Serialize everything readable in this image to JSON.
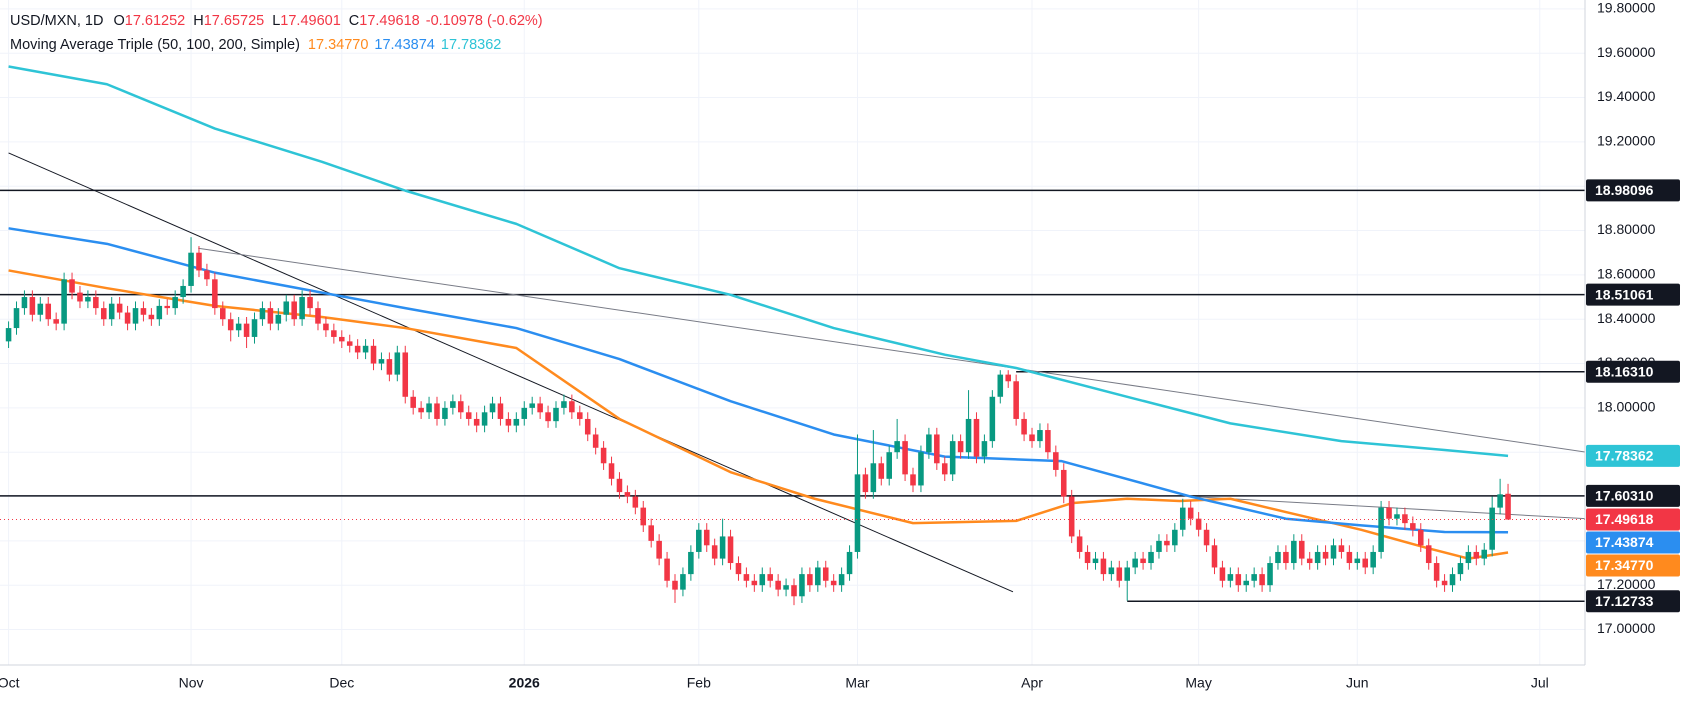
{
  "chart_data": {
    "type": "candlestick",
    "header": {
      "symbol": "USD/MXN, 1D",
      "ohlc": [
        {
          "key": "O",
          "value": "17.61252"
        },
        {
          "key": "H",
          "value": "17.65725"
        },
        {
          "key": "L",
          "value": "17.49601"
        },
        {
          "key": "C",
          "value": "17.49618"
        }
      ],
      "change": "-0.10978 (-0.62%)"
    },
    "legend_title": "Moving Average Triple (50, 100, 200, Simple)",
    "up_color": "#089981",
    "down_color": "#f23645",
    "grid": true,
    "xlim": [
      -1.08,
      198.7
    ],
    "ylim": [
      16.84,
      19.84
    ],
    "xticks": [
      {
        "value": 0,
        "label": "Oct"
      },
      {
        "value": 23,
        "label": "Nov"
      },
      {
        "value": 42,
        "label": "Dec"
      },
      {
        "value": 65,
        "label": "2026"
      },
      {
        "value": 87,
        "label": "Feb"
      },
      {
        "value": 107,
        "label": "Mar"
      },
      {
        "value": 129,
        "label": "Apr"
      },
      {
        "value": 150,
        "label": "May"
      },
      {
        "value": 170,
        "label": "Jun"
      },
      {
        "value": 193,
        "label": "Jul"
      }
    ],
    "yticks": [
      {
        "value": 17.0,
        "label": "17.00000"
      },
      {
        "value": 17.2,
        "label": "17.20000"
      },
      {
        "value": 17.4,
        "label": "17.40000"
      },
      {
        "value": 17.6,
        "label": "17.60000"
      },
      {
        "value": 17.8,
        "label": "17.80000"
      },
      {
        "value": 18.0,
        "label": "18.00000"
      },
      {
        "value": 18.2,
        "label": "18.20000"
      },
      {
        "value": 18.4,
        "label": "18.40000"
      },
      {
        "value": 18.6,
        "label": "18.60000"
      },
      {
        "value": 18.8,
        "label": "18.80000"
      },
      {
        "value": 19.0,
        "label": "19.00000"
      },
      {
        "value": 19.2,
        "label": "19.20000"
      },
      {
        "value": 19.4,
        "label": "19.40000"
      },
      {
        "value": 19.6,
        "label": "19.60000"
      },
      {
        "value": 19.8,
        "label": "19.80000"
      }
    ],
    "candles": [
      [
        18.3,
        18.39,
        18.27,
        18.36
      ],
      [
        18.36,
        18.48,
        18.33,
        18.45
      ],
      [
        18.45,
        18.53,
        18.42,
        18.5
      ],
      [
        18.5,
        18.53,
        18.39,
        18.42
      ],
      [
        18.42,
        18.5,
        18.39,
        18.47
      ],
      [
        18.47,
        18.5,
        18.37,
        18.4
      ],
      [
        18.4,
        18.43,
        18.35,
        18.38
      ],
      [
        18.38,
        18.61,
        18.35,
        18.58
      ],
      [
        18.58,
        18.61,
        18.49,
        18.52
      ],
      [
        18.52,
        18.55,
        18.45,
        18.48
      ],
      [
        18.48,
        18.53,
        18.45,
        18.5
      ],
      [
        18.5,
        18.53,
        18.42,
        18.45
      ],
      [
        18.45,
        18.48,
        18.37,
        18.4
      ],
      [
        18.4,
        18.5,
        18.37,
        18.47
      ],
      [
        18.47,
        18.5,
        18.4,
        18.43
      ],
      [
        18.43,
        18.46,
        18.35,
        18.38
      ],
      [
        18.38,
        18.48,
        18.35,
        18.45
      ],
      [
        18.45,
        18.48,
        18.39,
        18.42
      ],
      [
        18.42,
        18.45,
        18.37,
        18.4
      ],
      [
        18.4,
        18.49,
        18.37,
        18.46
      ],
      [
        18.46,
        18.49,
        18.42,
        18.45
      ],
      [
        18.45,
        18.53,
        18.42,
        18.5
      ],
      [
        18.5,
        18.58,
        18.47,
        18.55
      ],
      [
        18.55,
        18.77,
        18.52,
        18.7
      ],
      [
        18.7,
        18.73,
        18.59,
        18.62
      ],
      [
        18.62,
        18.65,
        18.55,
        18.58
      ],
      [
        18.58,
        18.61,
        18.42,
        18.45
      ],
      [
        18.45,
        18.48,
        18.37,
        18.4
      ],
      [
        18.4,
        18.43,
        18.3,
        18.35
      ],
      [
        18.35,
        18.41,
        18.32,
        18.38
      ],
      [
        18.38,
        18.41,
        18.27,
        18.32
      ],
      [
        18.32,
        18.43,
        18.29,
        18.4
      ],
      [
        18.4,
        18.48,
        18.37,
        18.45
      ],
      [
        18.45,
        18.48,
        18.35,
        18.38
      ],
      [
        18.38,
        18.45,
        18.35,
        18.42
      ],
      [
        18.42,
        18.51,
        18.39,
        18.48
      ],
      [
        18.48,
        18.51,
        18.37,
        18.4
      ],
      [
        18.4,
        18.53,
        18.37,
        18.5
      ],
      [
        18.5,
        18.53,
        18.42,
        18.45
      ],
      [
        18.45,
        18.48,
        18.35,
        18.38
      ],
      [
        18.38,
        18.41,
        18.32,
        18.35
      ],
      [
        18.35,
        18.38,
        18.29,
        18.32
      ],
      [
        18.32,
        18.35,
        18.27,
        18.3
      ],
      [
        18.3,
        18.33,
        18.25,
        18.28
      ],
      [
        18.28,
        18.31,
        18.22,
        18.25
      ],
      [
        18.25,
        18.31,
        18.22,
        18.28
      ],
      [
        18.28,
        18.31,
        18.17,
        18.2
      ],
      [
        18.2,
        18.25,
        18.17,
        18.22
      ],
      [
        18.22,
        18.25,
        18.12,
        18.15
      ],
      [
        18.15,
        18.28,
        18.12,
        18.25
      ],
      [
        18.25,
        18.28,
        18.02,
        18.05
      ],
      [
        18.05,
        18.08,
        17.97,
        18.0
      ],
      [
        18.0,
        18.03,
        17.95,
        17.98
      ],
      [
        17.98,
        18.05,
        17.95,
        18.02
      ],
      [
        18.02,
        18.05,
        17.92,
        17.95
      ],
      [
        17.95,
        18.03,
        17.92,
        18.0
      ],
      [
        18.0,
        18.06,
        17.97,
        18.03
      ],
      [
        18.03,
        18.06,
        17.95,
        17.98
      ],
      [
        17.98,
        18.01,
        17.92,
        17.95
      ],
      [
        17.95,
        17.98,
        17.89,
        17.92
      ],
      [
        17.92,
        18.01,
        17.89,
        17.98
      ],
      [
        17.98,
        18.05,
        17.95,
        18.02
      ],
      [
        18.02,
        18.05,
        17.92,
        17.95
      ],
      [
        17.95,
        17.98,
        17.89,
        17.92
      ],
      [
        17.92,
        17.98,
        17.89,
        17.95
      ],
      [
        17.95,
        18.03,
        17.92,
        18.0
      ],
      [
        18.0,
        18.05,
        17.97,
        18.02
      ],
      [
        18.02,
        18.05,
        17.95,
        17.98
      ],
      [
        17.98,
        18.01,
        17.91,
        17.94
      ],
      [
        17.94,
        18.03,
        17.91,
        18.0
      ],
      [
        18.0,
        18.06,
        17.97,
        18.03
      ],
      [
        18.03,
        18.06,
        17.95,
        17.98
      ],
      [
        17.98,
        18.01,
        17.92,
        17.95
      ],
      [
        17.95,
        17.98,
        17.85,
        17.88
      ],
      [
        17.88,
        17.91,
        17.79,
        17.82
      ],
      [
        17.82,
        17.85,
        17.72,
        17.75
      ],
      [
        17.75,
        17.78,
        17.65,
        17.68
      ],
      [
        17.68,
        17.71,
        17.59,
        17.62
      ],
      [
        17.62,
        17.65,
        17.57,
        17.6
      ],
      [
        17.6,
        17.63,
        17.52,
        17.55
      ],
      [
        17.55,
        17.58,
        17.44,
        17.47
      ],
      [
        17.47,
        17.5,
        17.37,
        17.4
      ],
      [
        17.4,
        17.43,
        17.29,
        17.32
      ],
      [
        17.32,
        17.35,
        17.19,
        17.22
      ],
      [
        17.22,
        17.25,
        17.12,
        17.18
      ],
      [
        17.18,
        17.28,
        17.15,
        17.25
      ],
      [
        17.25,
        17.38,
        17.22,
        17.35
      ],
      [
        17.35,
        17.48,
        17.32,
        17.45
      ],
      [
        17.45,
        17.48,
        17.35,
        17.38
      ],
      [
        17.38,
        17.41,
        17.29,
        17.32
      ],
      [
        17.32,
        17.5,
        17.29,
        17.42
      ],
      [
        17.42,
        17.45,
        17.27,
        17.3
      ],
      [
        17.3,
        17.33,
        17.22,
        17.25
      ],
      [
        17.25,
        17.28,
        17.19,
        17.22
      ],
      [
        17.22,
        17.25,
        17.17,
        17.2
      ],
      [
        17.2,
        17.28,
        17.17,
        17.25
      ],
      [
        17.25,
        17.28,
        17.19,
        17.22
      ],
      [
        17.22,
        17.25,
        17.15,
        17.18
      ],
      [
        17.18,
        17.23,
        17.15,
        17.2
      ],
      [
        17.2,
        17.23,
        17.11,
        17.15
      ],
      [
        17.15,
        17.28,
        17.12,
        17.25
      ],
      [
        17.25,
        17.28,
        17.17,
        17.2
      ],
      [
        17.2,
        17.31,
        17.17,
        17.28
      ],
      [
        17.28,
        17.31,
        17.19,
        17.22
      ],
      [
        17.22,
        17.25,
        17.17,
        17.2
      ],
      [
        17.2,
        17.28,
        17.17,
        17.25
      ],
      [
        17.25,
        17.38,
        17.22,
        17.35
      ],
      [
        17.35,
        17.88,
        17.32,
        17.7
      ],
      [
        17.7,
        17.73,
        17.59,
        17.62
      ],
      [
        17.62,
        17.9,
        17.59,
        17.75
      ],
      [
        17.75,
        17.78,
        17.65,
        17.68
      ],
      [
        17.68,
        17.83,
        17.65,
        17.8
      ],
      [
        17.8,
        17.95,
        17.77,
        17.85
      ],
      [
        17.85,
        17.88,
        17.67,
        17.7
      ],
      [
        17.7,
        17.73,
        17.62,
        17.65
      ],
      [
        17.65,
        17.83,
        17.62,
        17.8
      ],
      [
        17.8,
        17.91,
        17.77,
        17.88
      ],
      [
        17.88,
        17.91,
        17.72,
        17.75
      ],
      [
        17.75,
        17.78,
        17.67,
        17.7
      ],
      [
        17.7,
        17.88,
        17.67,
        17.85
      ],
      [
        17.85,
        17.88,
        17.77,
        17.8
      ],
      [
        17.8,
        18.08,
        17.77,
        17.95
      ],
      [
        17.95,
        17.98,
        17.75,
        17.78
      ],
      [
        17.78,
        17.88,
        17.75,
        17.85
      ],
      [
        17.85,
        18.08,
        17.82,
        18.05
      ],
      [
        18.05,
        18.17,
        18.02,
        18.15
      ],
      [
        18.15,
        18.17,
        18.09,
        18.12
      ],
      [
        18.12,
        18.15,
        17.92,
        17.95
      ],
      [
        17.95,
        17.98,
        17.85,
        17.88
      ],
      [
        17.88,
        17.91,
        17.82,
        17.85
      ],
      [
        17.85,
        17.93,
        17.82,
        17.9
      ],
      [
        17.9,
        17.93,
        17.77,
        17.8
      ],
      [
        17.8,
        17.83,
        17.69,
        17.72
      ],
      [
        17.72,
        17.75,
        17.57,
        17.6
      ],
      [
        17.6,
        17.63,
        17.39,
        17.42
      ],
      [
        17.42,
        17.45,
        17.32,
        17.35
      ],
      [
        17.35,
        17.38,
        17.27,
        17.3
      ],
      [
        17.3,
        17.35,
        17.27,
        17.32
      ],
      [
        17.32,
        17.35,
        17.22,
        17.25
      ],
      [
        17.25,
        17.31,
        17.22,
        17.28
      ],
      [
        17.28,
        17.31,
        17.19,
        17.22
      ],
      [
        17.22,
        17.31,
        17.13,
        17.28
      ],
      [
        17.28,
        17.35,
        17.25,
        17.32
      ],
      [
        17.32,
        17.35,
        17.27,
        17.3
      ],
      [
        17.3,
        17.38,
        17.27,
        17.35
      ],
      [
        17.35,
        17.43,
        17.32,
        17.4
      ],
      [
        17.4,
        17.43,
        17.35,
        17.38
      ],
      [
        17.38,
        17.48,
        17.35,
        17.45
      ],
      [
        17.45,
        17.59,
        17.42,
        17.55
      ],
      [
        17.55,
        17.58,
        17.47,
        17.5
      ],
      [
        17.5,
        17.53,
        17.42,
        17.45
      ],
      [
        17.45,
        17.48,
        17.35,
        17.38
      ],
      [
        17.38,
        17.41,
        17.25,
        17.28
      ],
      [
        17.28,
        17.31,
        17.19,
        17.22
      ],
      [
        17.22,
        17.28,
        17.19,
        17.25
      ],
      [
        17.25,
        17.28,
        17.17,
        17.2
      ],
      [
        17.2,
        17.25,
        17.17,
        17.22
      ],
      [
        17.22,
        17.28,
        17.19,
        17.25
      ],
      [
        17.25,
        17.28,
        17.17,
        17.2
      ],
      [
        17.2,
        17.33,
        17.17,
        17.3
      ],
      [
        17.3,
        17.38,
        17.27,
        17.35
      ],
      [
        17.35,
        17.38,
        17.27,
        17.3
      ],
      [
        17.3,
        17.43,
        17.27,
        17.4
      ],
      [
        17.4,
        17.43,
        17.29,
        17.32
      ],
      [
        17.32,
        17.35,
        17.27,
        17.3
      ],
      [
        17.3,
        17.38,
        17.27,
        17.35
      ],
      [
        17.35,
        17.38,
        17.29,
        17.32
      ],
      [
        17.32,
        17.41,
        17.29,
        17.38
      ],
      [
        17.38,
        17.41,
        17.32,
        17.35
      ],
      [
        17.35,
        17.38,
        17.27,
        17.3
      ],
      [
        17.3,
        17.35,
        17.27,
        17.32
      ],
      [
        17.32,
        17.35,
        17.25,
        17.28
      ],
      [
        17.28,
        17.38,
        17.25,
        17.35
      ],
      [
        17.35,
        17.58,
        17.32,
        17.55
      ],
      [
        17.55,
        17.58,
        17.47,
        17.5
      ],
      [
        17.5,
        17.55,
        17.47,
        17.52
      ],
      [
        17.52,
        17.55,
        17.45,
        17.48
      ],
      [
        17.48,
        17.51,
        17.42,
        17.45
      ],
      [
        17.45,
        17.48,
        17.35,
        17.38
      ],
      [
        17.38,
        17.41,
        17.27,
        17.3
      ],
      [
        17.3,
        17.33,
        17.19,
        17.22
      ],
      [
        17.22,
        17.25,
        17.17,
        17.2
      ],
      [
        17.2,
        17.28,
        17.17,
        17.25
      ],
      [
        17.25,
        17.33,
        17.22,
        17.3
      ],
      [
        17.3,
        17.38,
        17.27,
        17.35
      ],
      [
        17.35,
        17.38,
        17.29,
        17.32
      ],
      [
        17.32,
        17.39,
        17.29,
        17.36
      ],
      [
        17.36,
        17.6,
        17.33,
        17.55
      ],
      [
        17.55,
        17.68,
        17.52,
        17.61
      ],
      [
        17.61252,
        17.65725,
        17.49601,
        17.49618
      ]
    ],
    "ma_lines": [
      {
        "color": "#ff8a1e",
        "value_label": "17.34770",
        "x": [
          0,
          12.4,
          26,
          39.5,
          50,
          64,
          77,
          91,
          101.6,
          114,
          127,
          134,
          141,
          147.6,
          154,
          161,
          170.5,
          178.6,
          184,
          189
        ],
        "values": [
          18.62,
          18.54,
          18.46,
          18.41,
          18.36,
          18.27,
          17.95,
          17.71,
          17.59,
          17.48,
          17.49,
          17.57,
          17.59,
          17.58,
          17.59,
          17.53,
          17.45,
          17.37,
          17.32,
          17.3477
        ]
      },
      {
        "color": "#2b8ef0",
        "value_label": "17.43874",
        "x": [
          0,
          12.4,
          26,
          39.5,
          50,
          64,
          77,
          91,
          104,
          118,
          132.7,
          149,
          161,
          170.5,
          181,
          189
        ],
        "values": [
          18.81,
          18.74,
          18.61,
          18.52,
          18.45,
          18.36,
          18.22,
          18.03,
          17.88,
          17.78,
          17.76,
          17.6,
          17.5,
          17.47,
          17.44,
          17.43874
        ]
      },
      {
        "color": "#2ec4d6",
        "value_label": "17.78362",
        "x": [
          0,
          12.4,
          26,
          39.5,
          50,
          64,
          77,
          91,
          104,
          118,
          127,
          141,
          154,
          168,
          181,
          189
        ],
        "values": [
          19.54,
          19.46,
          19.26,
          19.11,
          18.98,
          18.83,
          18.63,
          18.51,
          18.36,
          18.24,
          18.18,
          18.05,
          17.93,
          17.85,
          17.81,
          17.78362
        ]
      }
    ],
    "trend_lines": [
      {
        "color": "#131722",
        "x": [
          0,
          126.6
        ],
        "values": [
          19.15,
          17.17
        ]
      },
      {
        "color": "#787b86",
        "x": [
          23.9,
          198.9
        ],
        "values": [
          18.72,
          17.8
        ]
      },
      {
        "color": "#787b86",
        "x": [
          149,
          198.9
        ],
        "values": [
          17.6,
          17.5
        ]
      }
    ],
    "levels": [
      {
        "value": 18.98096,
        "label": "18.98096"
      },
      {
        "value": 18.51061,
        "label": "18.51061"
      },
      {
        "value": 18.1631,
        "label": "18.16310",
        "from": 127
      },
      {
        "value": 17.6031,
        "label": "17.60310"
      },
      {
        "value": 17.12733,
        "label": "17.12733",
        "from": 141
      }
    ]
  }
}
